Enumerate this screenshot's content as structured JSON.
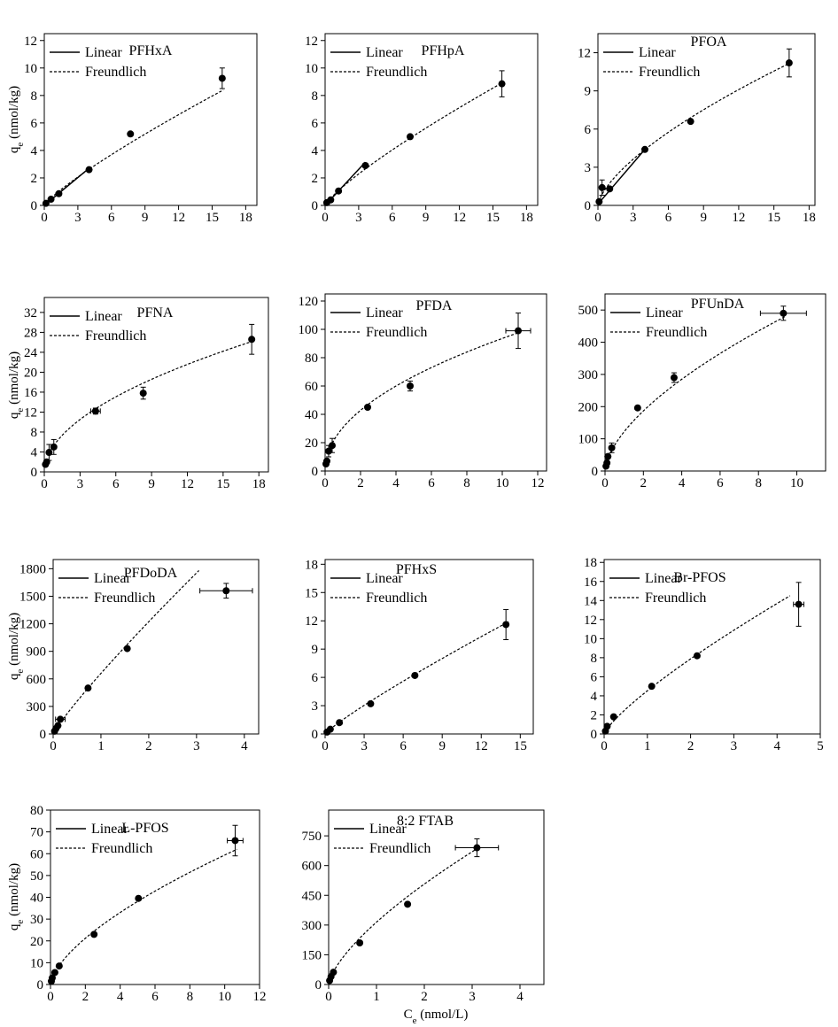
{
  "figure": {
    "ylabel_text": "q",
    "ylabel_sub": "e",
    "ylabel_unit": " (nmol/kg)",
    "xlabel_text": "C",
    "xlabel_sub": "e",
    "xlabel_unit": " (nmol/L)"
  },
  "legend": {
    "linear_label": "Linear",
    "freundlich_label": "Freundlich"
  },
  "chart_data": [
    {
      "type": "scatter",
      "title": "PFHxA",
      "xlabel": "",
      "ylabel": "q_e (nmol/kg)",
      "xlim": [
        0,
        19
      ],
      "ylim": [
        0,
        12.5
      ],
      "xticks": [
        0,
        3,
        6,
        9,
        12,
        15,
        18
      ],
      "yticks": [
        0,
        2,
        4,
        6,
        8,
        10,
        12
      ],
      "points": [
        {
          "x": 0.15,
          "y": 0.15
        },
        {
          "x": 0.6,
          "y": 0.45
        },
        {
          "x": 1.3,
          "y": 0.85
        },
        {
          "x": 4.0,
          "y": 2.6
        },
        {
          "x": 7.7,
          "y": 5.2
        },
        {
          "x": 15.9,
          "y": 9.25,
          "yerr": 0.75,
          "xerr": 0.15
        }
      ],
      "linear": [
        [
          0,
          0
        ],
        [
          4.0,
          2.7
        ]
      ],
      "freundlich": [
        [
          0.3,
          0.3
        ],
        [
          16.0,
          8.4
        ]
      ]
    },
    {
      "type": "scatter",
      "title": "PFHpA",
      "xlabel": "",
      "ylabel": "",
      "xlim": [
        0,
        19
      ],
      "ylim": [
        0,
        12.5
      ],
      "xticks": [
        0,
        3,
        6,
        9,
        12,
        15,
        18
      ],
      "yticks": [
        0,
        2,
        4,
        6,
        8,
        10,
        12
      ],
      "points": [
        {
          "x": 0.15,
          "y": 0.2
        },
        {
          "x": 0.5,
          "y": 0.4
        },
        {
          "x": 1.2,
          "y": 1.05
        },
        {
          "x": 3.6,
          "y": 2.9
        },
        {
          "x": 7.6,
          "y": 5.0
        },
        {
          "x": 15.8,
          "y": 8.85,
          "yerr": 0.95
        }
      ],
      "linear": [
        [
          0,
          0
        ],
        [
          3.6,
          3.15
        ]
      ],
      "freundlich": [
        [
          0.2,
          0.25
        ],
        [
          16.0,
          9.0
        ]
      ]
    },
    {
      "type": "scatter",
      "title": "PFOA",
      "xlabel": "",
      "ylabel": "",
      "xlim": [
        0,
        18.5
      ],
      "ylim": [
        0,
        13.5
      ],
      "xticks": [
        0,
        3,
        6,
        9,
        12,
        15,
        18
      ],
      "yticks": [
        0,
        3,
        6,
        9,
        12
      ],
      "points": [
        {
          "x": 0.1,
          "y": 0.3
        },
        {
          "x": 0.35,
          "y": 1.4,
          "yerr": 0.6
        },
        {
          "x": 1.0,
          "y": 1.3
        },
        {
          "x": 4.0,
          "y": 4.4
        },
        {
          "x": 7.9,
          "y": 6.6
        },
        {
          "x": 16.3,
          "y": 11.2,
          "yerr": 1.1
        }
      ],
      "linear": [
        [
          0,
          0.1
        ],
        [
          4.0,
          4.4
        ]
      ],
      "freundlich": [
        [
          0.2,
          0.6
        ],
        [
          16.4,
          11.2
        ]
      ]
    },
    {
      "type": "scatter",
      "title": "PFNA",
      "xlabel": "",
      "ylabel": "q_e (nmol/kg)",
      "xlim": [
        0,
        18.8
      ],
      "ylim": [
        0,
        35
      ],
      "xticks": [
        0,
        3,
        6,
        9,
        12,
        15,
        18
      ],
      "yticks": [
        0,
        4,
        8,
        12,
        16,
        20,
        24,
        28,
        32
      ],
      "points": [
        {
          "x": 0.1,
          "y": 1.5
        },
        {
          "x": 0.2,
          "y": 2.0
        },
        {
          "x": 0.4,
          "y": 3.9,
          "yerr": 1.6
        },
        {
          "x": 0.8,
          "y": 5.0,
          "yerr": 1.5
        },
        {
          "x": 4.3,
          "y": 12.2,
          "yerr": 0.6,
          "xerr": 0.4
        },
        {
          "x": 8.3,
          "y": 15.8,
          "yerr": 1.2
        },
        {
          "x": 17.4,
          "y": 26.6,
          "yerr": 3.0
        }
      ],
      "linear": [],
      "freundlich": [
        [
          0.4,
          3.7
        ],
        [
          17.6,
          26.3
        ]
      ]
    },
    {
      "type": "scatter",
      "title": "PFDA",
      "xlabel": "",
      "ylabel": "",
      "xlim": [
        0,
        12.5
      ],
      "ylim": [
        0,
        125
      ],
      "xticks": [
        0,
        2,
        4,
        6,
        8,
        10,
        12
      ],
      "yticks": [
        0,
        20,
        40,
        60,
        80,
        100,
        120
      ],
      "points": [
        {
          "x": 0.05,
          "y": 5.0
        },
        {
          "x": 0.1,
          "y": 7.0
        },
        {
          "x": 0.2,
          "y": 14.0,
          "yerr": 4.0
        },
        {
          "x": 0.4,
          "y": 18.0,
          "yerr": 5.0
        },
        {
          "x": 2.4,
          "y": 45.0
        },
        {
          "x": 4.8,
          "y": 60.0,
          "yerr": 3.5
        },
        {
          "x": 10.9,
          "y": 99.0,
          "yerr": 12.5,
          "xerr": 0.7
        }
      ],
      "linear": [],
      "freundlich": [
        [
          0.2,
          14.0
        ],
        [
          11.0,
          98.0
        ]
      ]
    },
    {
      "type": "scatter",
      "title": "PFUnDA",
      "xlabel": "",
      "ylabel": "",
      "xlim": [
        0,
        11.5
      ],
      "ylim": [
        0,
        550
      ],
      "xticks": [
        0,
        2,
        4,
        6,
        8,
        10
      ],
      "yticks": [
        0,
        100,
        200,
        300,
        400,
        500
      ],
      "points": [
        {
          "x": 0.05,
          "y": 15.0
        },
        {
          "x": 0.1,
          "y": 25.0
        },
        {
          "x": 0.15,
          "y": 45.0
        },
        {
          "x": 0.35,
          "y": 72.0,
          "yerr": 15.0
        },
        {
          "x": 1.7,
          "y": 196.0
        },
        {
          "x": 3.6,
          "y": 290.0,
          "yerr": 15.0
        },
        {
          "x": 9.3,
          "y": 490.0,
          "yerr": 22.0,
          "xerr": 1.2
        }
      ],
      "linear": [],
      "freundlich": [
        [
          0.1,
          30.0
        ],
        [
          9.4,
          480.0
        ]
      ]
    },
    {
      "type": "scatter",
      "title": "PFDoDA",
      "xlabel": "",
      "ylabel": "q_e (nmol/kg)",
      "xlim": [
        0,
        4.3
      ],
      "ylim": [
        0,
        1900
      ],
      "xticks": [
        0,
        1,
        2,
        3,
        4
      ],
      "yticks": [
        0,
        300,
        600,
        900,
        1200,
        1500,
        1800
      ],
      "points": [
        {
          "x": 0.03,
          "y": 30.0
        },
        {
          "x": 0.06,
          "y": 60.0
        },
        {
          "x": 0.1,
          "y": 90.0
        },
        {
          "x": 0.15,
          "y": 160.0,
          "xerr": 0.1
        },
        {
          "x": 0.73,
          "y": 500.0
        },
        {
          "x": 1.55,
          "y": 930.0
        },
        {
          "x": 3.62,
          "y": 1560.0,
          "yerr": 80.0,
          "xerr": 0.55
        }
      ],
      "linear": [],
      "freundlich": [
        [
          0.1,
          85.0
        ],
        [
          3.05,
          1780.0
        ]
      ]
    },
    {
      "type": "scatter",
      "title": "PFHxS",
      "xlabel": "",
      "ylabel": "",
      "xlim": [
        0,
        16
      ],
      "ylim": [
        0,
        18.5
      ],
      "xticks": [
        0,
        3,
        6,
        9,
        12,
        15
      ],
      "yticks": [
        0,
        3,
        6,
        9,
        12,
        15,
        18
      ],
      "points": [
        {
          "x": 0.15,
          "y": 0.2
        },
        {
          "x": 0.4,
          "y": 0.5
        },
        {
          "x": 1.1,
          "y": 1.2
        },
        {
          "x": 3.5,
          "y": 3.2
        },
        {
          "x": 6.9,
          "y": 6.2
        },
        {
          "x": 13.9,
          "y": 11.6,
          "yerr": 1.6
        }
      ],
      "linear": [],
      "freundlich": [
        [
          0.1,
          0.15
        ],
        [
          14.1,
          11.9
        ]
      ]
    },
    {
      "type": "scatter",
      "title": "Br-PFOS",
      "xlabel": "",
      "ylabel": "",
      "xlim": [
        0,
        5
      ],
      "ylim": [
        0,
        18.3
      ],
      "xticks": [
        0,
        1,
        2,
        3,
        4,
        5
      ],
      "yticks": [
        0,
        2,
        4,
        6,
        8,
        10,
        12,
        14,
        16,
        18
      ],
      "points": [
        {
          "x": 0.03,
          "y": 0.3
        },
        {
          "x": 0.07,
          "y": 0.8
        },
        {
          "x": 0.22,
          "y": 1.8
        },
        {
          "x": 1.1,
          "y": 5.0
        },
        {
          "x": 2.15,
          "y": 8.2
        },
        {
          "x": 4.5,
          "y": 13.6,
          "yerr": 2.3,
          "xerr": 0.12
        }
      ],
      "linear": [],
      "freundlich": [
        [
          0.02,
          0.2
        ],
        [
          4.3,
          14.5
        ]
      ]
    },
    {
      "type": "scatter",
      "title": "L-PFOS",
      "xlabel": "",
      "ylabel": "q_e (nmol/kg)",
      "xlim": [
        0,
        12
      ],
      "ylim": [
        0,
        80
      ],
      "xticks": [
        0,
        2,
        4,
        6,
        8,
        10,
        12
      ],
      "yticks": [
        0,
        10,
        20,
        30,
        40,
        50,
        60,
        70,
        80
      ],
      "points": [
        {
          "x": 0.05,
          "y": 1.5
        },
        {
          "x": 0.1,
          "y": 3.0
        },
        {
          "x": 0.25,
          "y": 5.5
        },
        {
          "x": 0.5,
          "y": 8.5
        },
        {
          "x": 2.5,
          "y": 23.0
        },
        {
          "x": 5.05,
          "y": 39.5
        },
        {
          "x": 10.6,
          "y": 66.0,
          "yerr": 7.0,
          "xerr": 0.45
        }
      ],
      "linear": [],
      "freundlich": [
        [
          0.05,
          2.0
        ],
        [
          10.7,
          62.0
        ]
      ]
    },
    {
      "type": "scatter",
      "title": "8:2 FTAB",
      "xlabel": "C_e (nmol/L)",
      "ylabel": "",
      "xlim": [
        0,
        4.5
      ],
      "ylim": [
        0,
        880
      ],
      "xticks": [
        0,
        1,
        2,
        3,
        4
      ],
      "yticks": [
        0,
        150,
        300,
        450,
        600,
        750
      ],
      "points": [
        {
          "x": 0.02,
          "y": 20.0
        },
        {
          "x": 0.05,
          "y": 40.0
        },
        {
          "x": 0.1,
          "y": 62.0
        },
        {
          "x": 0.65,
          "y": 210.0
        },
        {
          "x": 1.65,
          "y": 405.0
        },
        {
          "x": 3.1,
          "y": 690.0,
          "yerr": 45.0,
          "xerr": 0.45
        }
      ],
      "linear": [],
      "freundlich": [
        [
          0.05,
          40.0
        ],
        [
          3.1,
          685.0
        ]
      ]
    }
  ]
}
